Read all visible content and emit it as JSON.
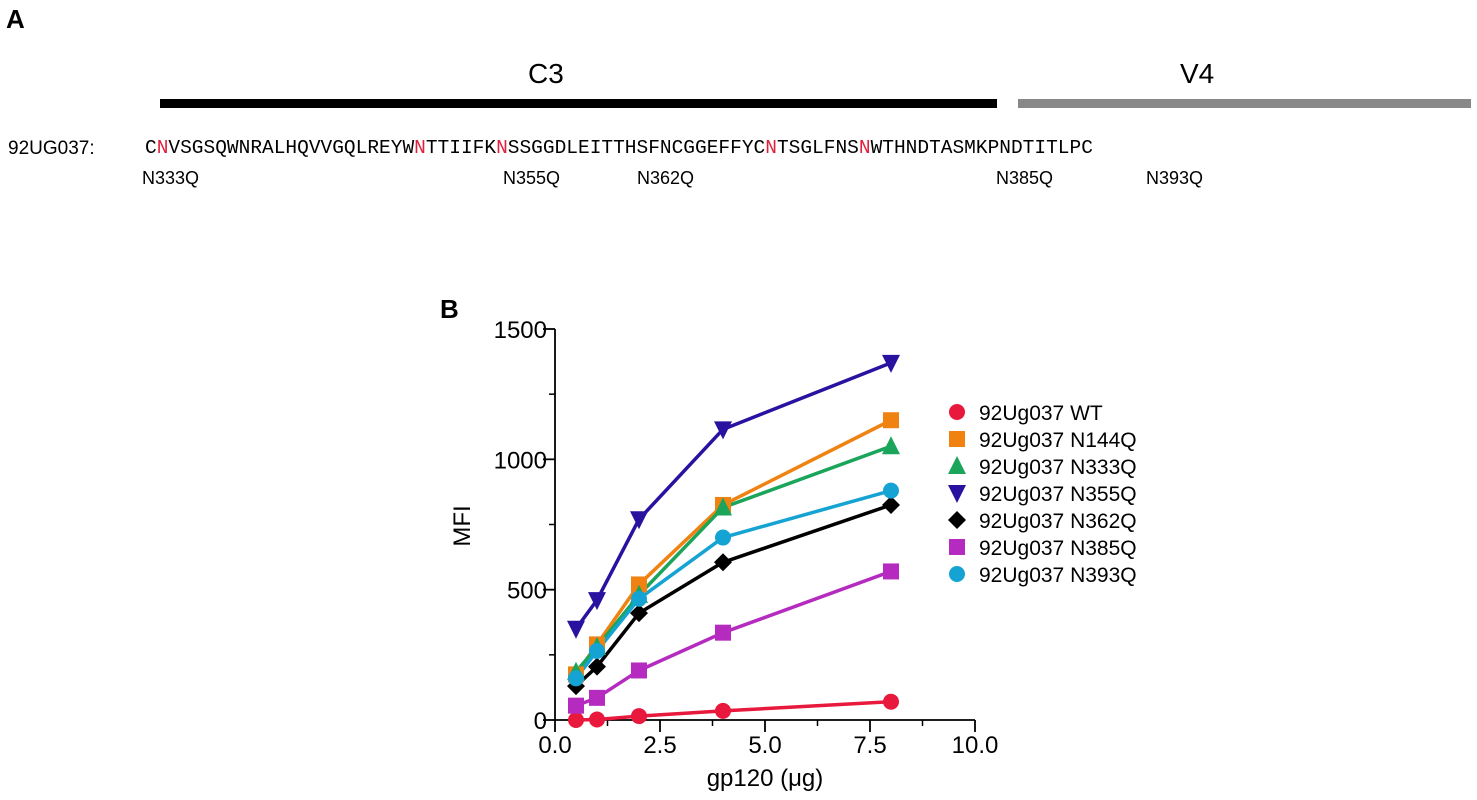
{
  "panel_a": {
    "label": "A",
    "regions": [
      {
        "label": "C3",
        "color": "#000000"
      },
      {
        "label": "V4",
        "color": "#888888"
      }
    ],
    "sequence_name": "92UG037:",
    "sequence_segments": [
      {
        "text": "C",
        "highlight": false
      },
      {
        "text": "N",
        "highlight": true
      },
      {
        "text": "VSGSQWNRALHQVVGQLREYW",
        "highlight": false
      },
      {
        "text": "N",
        "highlight": true
      },
      {
        "text": "TTIIFK",
        "highlight": false
      },
      {
        "text": "N",
        "highlight": true
      },
      {
        "text": "SSGGDLEITTHSFNCGGEFFYC",
        "highlight": false
      },
      {
        "text": "N",
        "highlight": true
      },
      {
        "text": "TSGLFNS",
        "highlight": false
      },
      {
        "text": "N",
        "highlight": true
      },
      {
        "text": "WTHNDTASMKPNDTITLPC",
        "highlight": false
      }
    ],
    "highlight_color": "#e0203c",
    "mutations": [
      "N333Q",
      "N355Q",
      "N362Q",
      "N385Q",
      "N393Q"
    ]
  },
  "chart_data": {
    "panel_label": "B",
    "type": "line",
    "xlabel": "gp120 (μg)",
    "ylabel": "MFI",
    "xlim": [
      0,
      10
    ],
    "ylim": [
      0,
      1500
    ],
    "xticks": [
      "0.0",
      "2.5",
      "5.0",
      "7.5",
      "10.0"
    ],
    "yticks": [
      "0",
      "500",
      "1000",
      "1500"
    ],
    "legend_position": "right",
    "x": [
      0.5,
      1,
      2,
      4,
      8
    ],
    "series": [
      {
        "name": "92Ug037 WT",
        "color": "#e8193c",
        "marker": "circle",
        "values": [
          0,
          2,
          15,
          35,
          70
        ]
      },
      {
        "name": "92Ug037 N144Q",
        "color": "#f08212",
        "marker": "square",
        "values": [
          175,
          290,
          520,
          825,
          1150
        ]
      },
      {
        "name": "92Ug037 N333Q",
        "color": "#1aa55a",
        "marker": "triangle-up",
        "values": [
          185,
          280,
          480,
          815,
          1050
        ]
      },
      {
        "name": "92Ug037 N355Q",
        "color": "#2a12a0",
        "marker": "triangle-down",
        "values": [
          350,
          460,
          770,
          1115,
          1370
        ]
      },
      {
        "name": "92Ug037 N362Q",
        "color": "#000000",
        "marker": "diamond",
        "values": [
          130,
          205,
          410,
          605,
          825
        ]
      },
      {
        "name": "92Ug037 N385Q",
        "color": "#b52bbf",
        "marker": "square",
        "values": [
          55,
          85,
          190,
          335,
          570
        ]
      },
      {
        "name": "92Ug037 N393Q",
        "color": "#15a3d3",
        "marker": "circle",
        "values": [
          160,
          265,
          465,
          700,
          880
        ]
      }
    ]
  }
}
